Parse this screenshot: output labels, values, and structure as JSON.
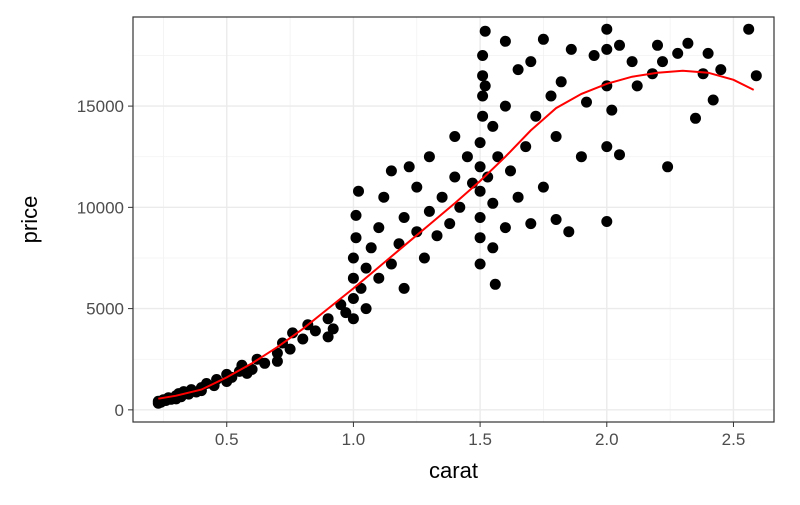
{
  "chart_data": {
    "type": "scatter",
    "title": "",
    "xlabel": "carat",
    "ylabel": "price",
    "xlim": [
      0.13,
      2.66
    ],
    "ylim": [
      -600,
      19400
    ],
    "x_ticks": [
      0.5,
      1.0,
      1.5,
      2.0,
      2.5
    ],
    "x_tick_labels": [
      "0.5",
      "1.0",
      "1.5",
      "2.0",
      "2.5"
    ],
    "y_ticks": [
      0,
      5000,
      10000,
      15000
    ],
    "y_tick_labels": [
      "0",
      "5000",
      "10000",
      "15000"
    ],
    "grid": true,
    "legend": "none",
    "colors": {
      "points": "#000000",
      "smooth": "#ff0000",
      "panel_background": "#ffffff",
      "grid": "#ebebeb"
    },
    "points": [
      [
        0.23,
        330
      ],
      [
        0.23,
        420
      ],
      [
        0.24,
        380
      ],
      [
        0.25,
        500
      ],
      [
        0.26,
        460
      ],
      [
        0.27,
        600
      ],
      [
        0.28,
        520
      ],
      [
        0.3,
        700
      ],
      [
        0.3,
        540
      ],
      [
        0.31,
        800
      ],
      [
        0.32,
        650
      ],
      [
        0.33,
        900
      ],
      [
        0.35,
        780
      ],
      [
        0.36,
        1000
      ],
      [
        0.38,
        880
      ],
      [
        0.4,
        1100
      ],
      [
        0.4,
        950
      ],
      [
        0.42,
        1300
      ],
      [
        0.45,
        1200
      ],
      [
        0.46,
        1500
      ],
      [
        0.5,
        1400
      ],
      [
        0.5,
        1750
      ],
      [
        0.52,
        1600
      ],
      [
        0.55,
        1900
      ],
      [
        0.56,
        2200
      ],
      [
        0.58,
        1800
      ],
      [
        0.6,
        2000
      ],
      [
        0.62,
        2500
      ],
      [
        0.65,
        2300
      ],
      [
        0.7,
        2800
      ],
      [
        0.7,
        2400
      ],
      [
        0.72,
        3300
      ],
      [
        0.75,
        3000
      ],
      [
        0.76,
        3800
      ],
      [
        0.8,
        3500
      ],
      [
        0.82,
        4200
      ],
      [
        0.85,
        3900
      ],
      [
        0.9,
        4500
      ],
      [
        0.9,
        3600
      ],
      [
        0.92,
        4000
      ],
      [
        0.95,
        5200
      ],
      [
        0.97,
        4800
      ],
      [
        1.0,
        4500
      ],
      [
        1.0,
        5500
      ],
      [
        1.0,
        6500
      ],
      [
        1.0,
        7500
      ],
      [
        1.01,
        8500
      ],
      [
        1.01,
        9600
      ],
      [
        1.02,
        10800
      ],
      [
        1.03,
        6000
      ],
      [
        1.05,
        7000
      ],
      [
        1.05,
        5000
      ],
      [
        1.07,
        8000
      ],
      [
        1.1,
        9000
      ],
      [
        1.1,
        6500
      ],
      [
        1.12,
        10500
      ],
      [
        1.15,
        7200
      ],
      [
        1.15,
        11800
      ],
      [
        1.18,
        8200
      ],
      [
        1.2,
        9500
      ],
      [
        1.2,
        6000
      ],
      [
        1.22,
        12000
      ],
      [
        1.25,
        8800
      ],
      [
        1.25,
        11000
      ],
      [
        1.28,
        7500
      ],
      [
        1.3,
        9800
      ],
      [
        1.3,
        12500
      ],
      [
        1.33,
        8600
      ],
      [
        1.35,
        10500
      ],
      [
        1.38,
        9200
      ],
      [
        1.4,
        11500
      ],
      [
        1.4,
        13500
      ],
      [
        1.42,
        10000
      ],
      [
        1.45,
        12500
      ],
      [
        1.47,
        11200
      ],
      [
        1.5,
        7200
      ],
      [
        1.5,
        8500
      ],
      [
        1.5,
        9500
      ],
      [
        1.5,
        10800
      ],
      [
        1.5,
        12000
      ],
      [
        1.5,
        13200
      ],
      [
        1.51,
        14500
      ],
      [
        1.51,
        15500
      ],
      [
        1.51,
        16500
      ],
      [
        1.51,
        17500
      ],
      [
        1.52,
        18700
      ],
      [
        1.52,
        16000
      ],
      [
        1.53,
        11500
      ],
      [
        1.55,
        8000
      ],
      [
        1.55,
        10200
      ],
      [
        1.55,
        14000
      ],
      [
        1.56,
        6200
      ],
      [
        1.57,
        12500
      ],
      [
        1.6,
        9000
      ],
      [
        1.6,
        15000
      ],
      [
        1.6,
        18200
      ],
      [
        1.62,
        11800
      ],
      [
        1.65,
        10500
      ],
      [
        1.65,
        16800
      ],
      [
        1.68,
        13000
      ],
      [
        1.7,
        9200
      ],
      [
        1.7,
        17200
      ],
      [
        1.72,
        14500
      ],
      [
        1.75,
        11000
      ],
      [
        1.75,
        18300
      ],
      [
        1.78,
        15500
      ],
      [
        1.8,
        9400
      ],
      [
        1.8,
        13500
      ],
      [
        1.82,
        16200
      ],
      [
        1.85,
        8800
      ],
      [
        1.86,
        17800
      ],
      [
        1.9,
        12500
      ],
      [
        1.92,
        15200
      ],
      [
        1.95,
        17500
      ],
      [
        2.0,
        9300
      ],
      [
        2.0,
        13000
      ],
      [
        2.0,
        16000
      ],
      [
        2.0,
        17800
      ],
      [
        2.0,
        18800
      ],
      [
        2.02,
        14800
      ],
      [
        2.05,
        12600
      ],
      [
        2.05,
        18000
      ],
      [
        2.1,
        17200
      ],
      [
        2.12,
        16000
      ],
      [
        2.18,
        16600
      ],
      [
        2.2,
        18000
      ],
      [
        2.22,
        17200
      ],
      [
        2.24,
        12000
      ],
      [
        2.28,
        17600
      ],
      [
        2.32,
        18100
      ],
      [
        2.35,
        14400
      ],
      [
        2.38,
        16600
      ],
      [
        2.4,
        17600
      ],
      [
        2.42,
        15300
      ],
      [
        2.45,
        16800
      ],
      [
        2.56,
        18800
      ],
      [
        2.59,
        16500
      ]
    ],
    "smooth_line": [
      [
        0.23,
        550
      ],
      [
        0.3,
        700
      ],
      [
        0.4,
        1000
      ],
      [
        0.5,
        1600
      ],
      [
        0.6,
        2300
      ],
      [
        0.7,
        3100
      ],
      [
        0.8,
        4000
      ],
      [
        0.9,
        5000
      ],
      [
        1.0,
        6000
      ],
      [
        1.1,
        7050
      ],
      [
        1.2,
        8100
      ],
      [
        1.3,
        9150
      ],
      [
        1.4,
        10200
      ],
      [
        1.5,
        11300
      ],
      [
        1.6,
        12500
      ],
      [
        1.7,
        13800
      ],
      [
        1.8,
        14900
      ],
      [
        1.9,
        15600
      ],
      [
        2.0,
        16100
      ],
      [
        2.1,
        16450
      ],
      [
        2.2,
        16650
      ],
      [
        2.3,
        16750
      ],
      [
        2.4,
        16650
      ],
      [
        2.5,
        16300
      ],
      [
        2.58,
        15800
      ]
    ]
  }
}
